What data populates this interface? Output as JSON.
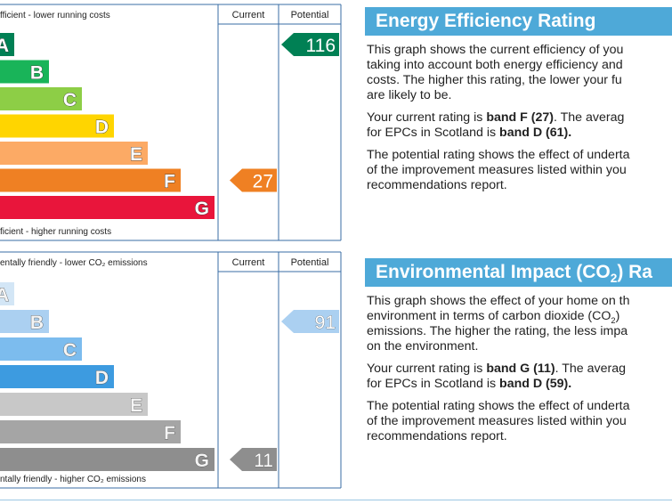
{
  "panels": [
    {
      "chart": {
        "top_label": "fficient - lower running costs",
        "bottom_label": "ficient - higher running costs",
        "current_header": "Current",
        "potential_header": "Potential",
        "bands": [
          "A",
          "B",
          "C",
          "D",
          "E",
          "F",
          "G"
        ],
        "current": 27,
        "potential": 116
      },
      "text": {
        "title": "Energy Efficiency Rating",
        "paragraphs": [
          [
            "This graph shows the current efficiency of you",
            "taking into account both energy efficiency and",
            "costs. The higher this rating, the lower your fu",
            "are likely to be."
          ],
          [
            [
              "Your current rating is ",
              "band F (27)",
              ". The averag"
            ],
            [
              "for EPCs in Scotland is ",
              "band D (61)."
            ]
          ],
          [
            "The potential rating shows the effect of underta",
            "of the improvement measures listed within you",
            "recommendations report."
          ]
        ]
      }
    },
    {
      "chart": {
        "top_label": "entally friendly - lower CO₂ emissions",
        "bottom_label": "ntally friendly - higher CO₂ emissions",
        "current_header": "Current",
        "potential_header": "Potential",
        "bands": [
          "A",
          "B",
          "C",
          "D",
          "E",
          "F",
          "G"
        ],
        "current": 11,
        "potential": 91
      },
      "text": {
        "title": [
          "Environmental Impact (CO",
          "2",
          ") Ra"
        ],
        "paragraphs": [
          [
            "This graph shows the effect of your home on th",
            [
              "environment in terms of carbon dioxide (CO",
              "2",
              ")"
            ],
            "emissions. The higher the rating, the less impa",
            "on the environment."
          ],
          [
            [
              "Your current rating is ",
              "band G (11)",
              ". The averag"
            ],
            [
              "for EPCs in Scotland is ",
              "band D (59)."
            ]
          ],
          [
            "The potential rating shows the effect of underta",
            "of the improvement measures listed within you",
            "recommendations report."
          ]
        ]
      }
    }
  ]
}
